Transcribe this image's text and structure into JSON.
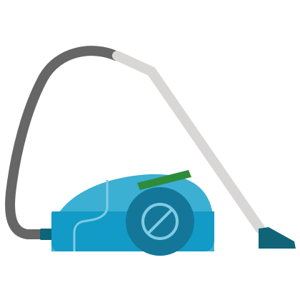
{
  "illustration": {
    "subject": "vacuum-cleaner-icon",
    "colors": {
      "background": "#ffffff",
      "hose": "#666666",
      "wand": "#d9d6d6",
      "body_main": "#129bc6",
      "body_light": "#3bb0d3",
      "body_seam": "#7fcce3",
      "wheel_outer": "#14779a",
      "wheel_inner": "#0f6480",
      "wheel_ring": "#7fcce3",
      "handle": "#2e8b3a",
      "nozzle": "#0f6577",
      "connector": "#0f6577"
    }
  }
}
